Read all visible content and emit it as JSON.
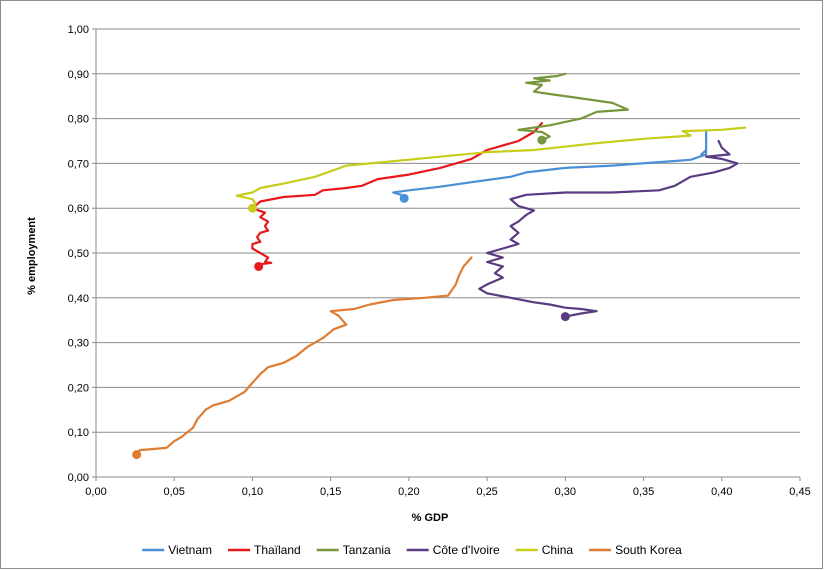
{
  "chart_data": {
    "type": "line",
    "title": "",
    "xlabel": "% GDP",
    "ylabel": "% employment",
    "xlim": [
      0,
      0.45
    ],
    "ylim": [
      0,
      1.0
    ],
    "x_ticks": [
      "0,00",
      "0,05",
      "0,10",
      "0,15",
      "0,20",
      "0,25",
      "0,30",
      "0,35",
      "0,40",
      "0,45"
    ],
    "y_ticks": [
      "0,00",
      "0,10",
      "0,20",
      "0,30",
      "0,40",
      "0,50",
      "0,60",
      "0,70",
      "0,80",
      "0,90",
      "1,00"
    ],
    "grid": "horizontal",
    "legend_position": "bottom",
    "series": [
      {
        "name": "Vietnam",
        "color": "#4a8fd6",
        "start_marker": true,
        "points": [
          [
            0.197,
            0.622
          ],
          [
            0.195,
            0.63
          ],
          [
            0.19,
            0.635
          ],
          [
            0.2,
            0.64
          ],
          [
            0.22,
            0.648
          ],
          [
            0.24,
            0.658
          ],
          [
            0.265,
            0.67
          ],
          [
            0.275,
            0.68
          ],
          [
            0.3,
            0.69
          ],
          [
            0.33,
            0.695
          ],
          [
            0.36,
            0.703
          ],
          [
            0.38,
            0.708
          ],
          [
            0.39,
            0.72
          ],
          [
            0.39,
            0.77
          ],
          [
            0.39,
            0.73
          ],
          [
            0.387,
            0.72
          ]
        ]
      },
      {
        "name": "Thaïland",
        "color": "#e8181b",
        "start_marker": true,
        "points": [
          [
            0.104,
            0.47
          ],
          [
            0.105,
            0.475
          ],
          [
            0.112,
            0.478
          ],
          [
            0.108,
            0.48
          ],
          [
            0.11,
            0.49
          ],
          [
            0.105,
            0.5
          ],
          [
            0.1,
            0.51
          ],
          [
            0.1,
            0.52
          ],
          [
            0.105,
            0.525
          ],
          [
            0.103,
            0.535
          ],
          [
            0.105,
            0.545
          ],
          [
            0.11,
            0.55
          ],
          [
            0.108,
            0.56
          ],
          [
            0.11,
            0.57
          ],
          [
            0.105,
            0.58
          ],
          [
            0.108,
            0.59
          ],
          [
            0.1,
            0.6
          ],
          [
            0.105,
            0.615
          ],
          [
            0.12,
            0.625
          ],
          [
            0.14,
            0.63
          ],
          [
            0.145,
            0.64
          ],
          [
            0.16,
            0.645
          ],
          [
            0.17,
            0.65
          ],
          [
            0.18,
            0.665
          ],
          [
            0.2,
            0.675
          ],
          [
            0.22,
            0.69
          ],
          [
            0.24,
            0.71
          ],
          [
            0.25,
            0.73
          ],
          [
            0.27,
            0.75
          ],
          [
            0.28,
            0.77
          ],
          [
            0.285,
            0.79
          ]
        ]
      },
      {
        "name": "Tanzania",
        "color": "#76963b",
        "start_marker": true,
        "points": [
          [
            0.285,
            0.752
          ],
          [
            0.29,
            0.76
          ],
          [
            0.285,
            0.77
          ],
          [
            0.27,
            0.775
          ],
          [
            0.29,
            0.785
          ],
          [
            0.31,
            0.8
          ],
          [
            0.32,
            0.815
          ],
          [
            0.34,
            0.82
          ],
          [
            0.33,
            0.835
          ],
          [
            0.31,
            0.845
          ],
          [
            0.29,
            0.855
          ],
          [
            0.28,
            0.86
          ],
          [
            0.285,
            0.875
          ],
          [
            0.275,
            0.88
          ],
          [
            0.29,
            0.885
          ],
          [
            0.28,
            0.89
          ],
          [
            0.295,
            0.895
          ],
          [
            0.3,
            0.9
          ]
        ]
      },
      {
        "name": "Côte d'Ivoire",
        "color": "#5a3a82",
        "start_marker": true,
        "points": [
          [
            0.3,
            0.358
          ],
          [
            0.31,
            0.365
          ],
          [
            0.32,
            0.37
          ],
          [
            0.31,
            0.375
          ],
          [
            0.3,
            0.378
          ],
          [
            0.29,
            0.385
          ],
          [
            0.28,
            0.39
          ],
          [
            0.265,
            0.4
          ],
          [
            0.25,
            0.41
          ],
          [
            0.245,
            0.42
          ],
          [
            0.25,
            0.43
          ],
          [
            0.26,
            0.445
          ],
          [
            0.255,
            0.455
          ],
          [
            0.26,
            0.47
          ],
          [
            0.25,
            0.48
          ],
          [
            0.26,
            0.49
          ],
          [
            0.25,
            0.5
          ],
          [
            0.26,
            0.51
          ],
          [
            0.27,
            0.52
          ],
          [
            0.265,
            0.53
          ],
          [
            0.27,
            0.545
          ],
          [
            0.265,
            0.56
          ],
          [
            0.27,
            0.57
          ],
          [
            0.275,
            0.585
          ],
          [
            0.28,
            0.595
          ],
          [
            0.27,
            0.605
          ],
          [
            0.265,
            0.62
          ],
          [
            0.275,
            0.63
          ],
          [
            0.3,
            0.635
          ],
          [
            0.33,
            0.635
          ],
          [
            0.36,
            0.64
          ],
          [
            0.37,
            0.65
          ],
          [
            0.38,
            0.67
          ],
          [
            0.395,
            0.68
          ],
          [
            0.405,
            0.69
          ],
          [
            0.41,
            0.7
          ],
          [
            0.4,
            0.71
          ],
          [
            0.39,
            0.715
          ],
          [
            0.405,
            0.72
          ],
          [
            0.4,
            0.735
          ],
          [
            0.398,
            0.75
          ]
        ]
      },
      {
        "name": "China",
        "color": "#c8cc1a",
        "start_marker": true,
        "points": [
          [
            0.1,
            0.6
          ],
          [
            0.102,
            0.61
          ],
          [
            0.1,
            0.62
          ],
          [
            0.09,
            0.628
          ],
          [
            0.1,
            0.635
          ],
          [
            0.105,
            0.645
          ],
          [
            0.12,
            0.655
          ],
          [
            0.14,
            0.67
          ],
          [
            0.16,
            0.695
          ],
          [
            0.19,
            0.705
          ],
          [
            0.22,
            0.715
          ],
          [
            0.25,
            0.725
          ],
          [
            0.28,
            0.73
          ],
          [
            0.32,
            0.745
          ],
          [
            0.35,
            0.755
          ],
          [
            0.38,
            0.762
          ],
          [
            0.375,
            0.772
          ],
          [
            0.4,
            0.775
          ],
          [
            0.415,
            0.78
          ]
        ]
      },
      {
        "name": "South Korea",
        "color": "#e07b32",
        "start_marker": true,
        "points": [
          [
            0.026,
            0.05
          ],
          [
            0.028,
            0.06
          ],
          [
            0.045,
            0.065
          ],
          [
            0.05,
            0.08
          ],
          [
            0.055,
            0.09
          ],
          [
            0.062,
            0.11
          ],
          [
            0.065,
            0.13
          ],
          [
            0.07,
            0.15
          ],
          [
            0.075,
            0.16
          ],
          [
            0.085,
            0.17
          ],
          [
            0.095,
            0.19
          ],
          [
            0.1,
            0.21
          ],
          [
            0.105,
            0.23
          ],
          [
            0.11,
            0.245
          ],
          [
            0.12,
            0.255
          ],
          [
            0.128,
            0.27
          ],
          [
            0.135,
            0.29
          ],
          [
            0.145,
            0.31
          ],
          [
            0.152,
            0.33
          ],
          [
            0.16,
            0.34
          ],
          [
            0.155,
            0.36
          ],
          [
            0.15,
            0.37
          ],
          [
            0.165,
            0.375
          ],
          [
            0.175,
            0.385
          ],
          [
            0.19,
            0.395
          ],
          [
            0.21,
            0.4
          ],
          [
            0.225,
            0.405
          ],
          [
            0.23,
            0.43
          ],
          [
            0.232,
            0.45
          ],
          [
            0.235,
            0.47
          ],
          [
            0.24,
            0.49
          ]
        ]
      }
    ]
  }
}
